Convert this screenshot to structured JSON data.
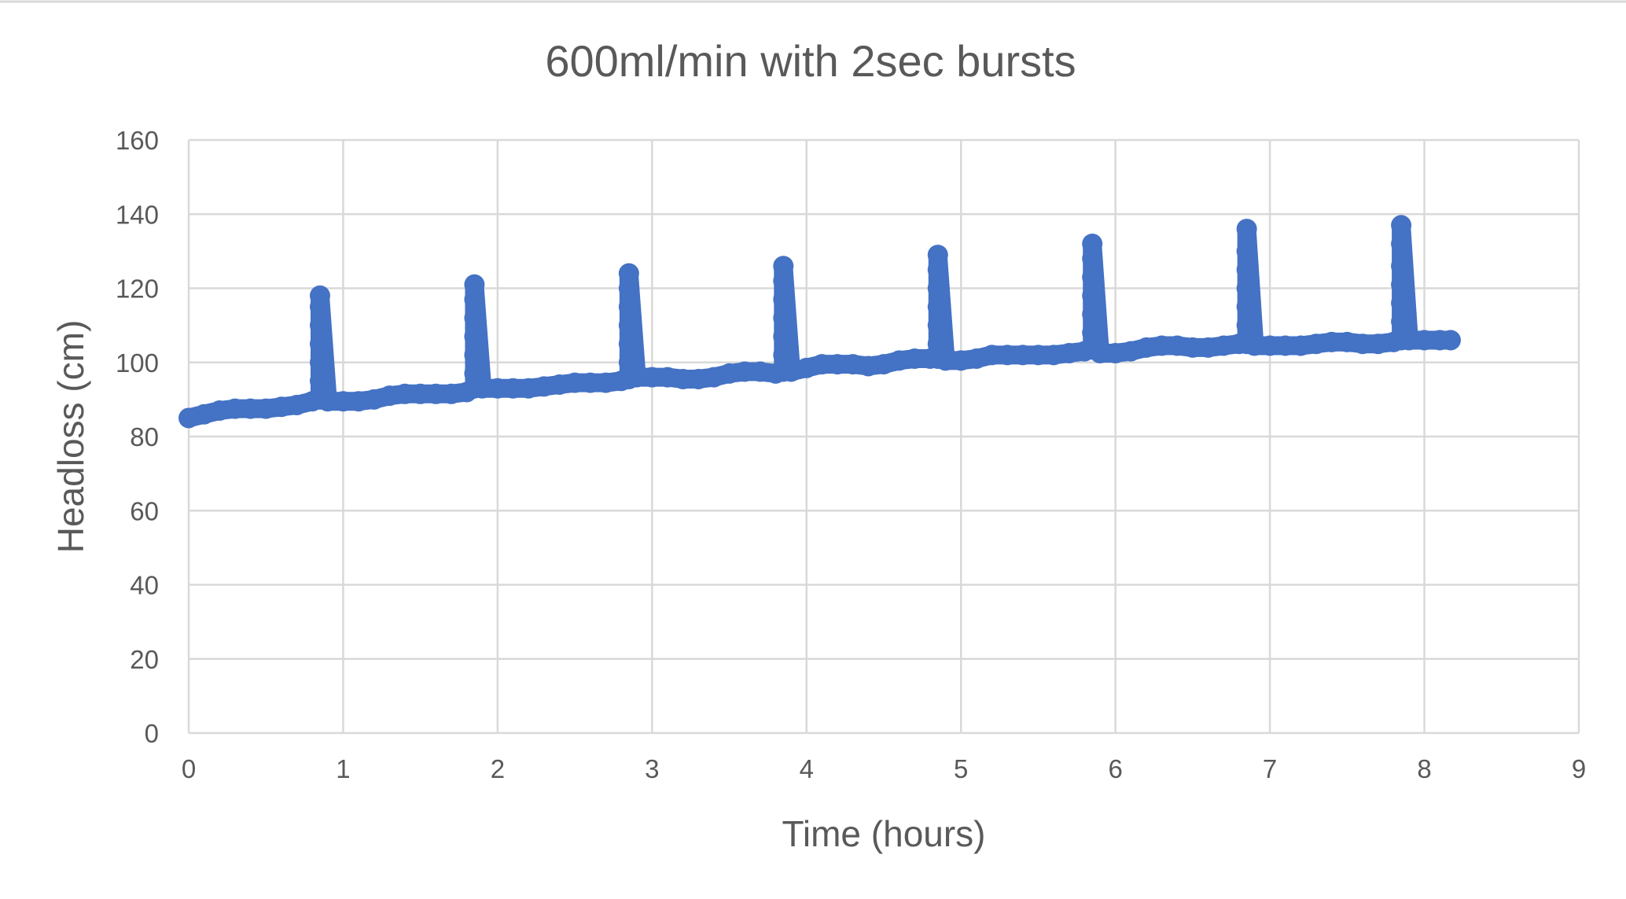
{
  "chart_data": {
    "type": "scatter",
    "title": "600ml/min with 2sec bursts",
    "xlabel": "Time (hours)",
    "ylabel": "Headloss (cm)",
    "xlim": [
      0,
      9
    ],
    "ylim": [
      0,
      160
    ],
    "xticks": [
      0,
      1,
      2,
      3,
      4,
      5,
      6,
      7,
      8,
      9
    ],
    "yticks": [
      0,
      20,
      40,
      60,
      80,
      100,
      120,
      140,
      160
    ],
    "grid": true,
    "legend": "none",
    "series": [
      {
        "color": "#4472c4",
        "points": [
          [
            0.0,
            85
          ],
          [
            0.1,
            86
          ],
          [
            0.2,
            87
          ],
          [
            0.3,
            87.5
          ],
          [
            0.4,
            87.5
          ],
          [
            0.5,
            87.5
          ],
          [
            0.6,
            88
          ],
          [
            0.7,
            88.5
          ],
          [
            0.8,
            89.5
          ],
          [
            0.85,
            90
          ],
          [
            0.85,
            95
          ],
          [
            0.85,
            100
          ],
          [
            0.85,
            105
          ],
          [
            0.85,
            110
          ],
          [
            0.85,
            115
          ],
          [
            0.85,
            118
          ],
          [
            0.9,
            89.5
          ],
          [
            1.0,
            89.5
          ],
          [
            1.1,
            89.5
          ],
          [
            1.2,
            90
          ],
          [
            1.3,
            91
          ],
          [
            1.4,
            91.5
          ],
          [
            1.5,
            91.5
          ],
          [
            1.6,
            91.5
          ],
          [
            1.7,
            91.5
          ],
          [
            1.8,
            92
          ],
          [
            1.85,
            93
          ],
          [
            1.85,
            97
          ],
          [
            1.85,
            102
          ],
          [
            1.85,
            107
          ],
          [
            1.85,
            112
          ],
          [
            1.85,
            117
          ],
          [
            1.85,
            121
          ],
          [
            1.9,
            93
          ],
          [
            2.0,
            93
          ],
          [
            2.1,
            93
          ],
          [
            2.2,
            93
          ],
          [
            2.3,
            93.5
          ],
          [
            2.4,
            94
          ],
          [
            2.5,
            94.5
          ],
          [
            2.6,
            94.5
          ],
          [
            2.7,
            94.5
          ],
          [
            2.8,
            95
          ],
          [
            2.85,
            95.5
          ],
          [
            2.85,
            100
          ],
          [
            2.85,
            105
          ],
          [
            2.85,
            110
          ],
          [
            2.85,
            115
          ],
          [
            2.85,
            120
          ],
          [
            2.85,
            124
          ],
          [
            2.9,
            96
          ],
          [
            3.0,
            96
          ],
          [
            3.1,
            96
          ],
          [
            3.2,
            95.5
          ],
          [
            3.3,
            95.5
          ],
          [
            3.4,
            96
          ],
          [
            3.5,
            97
          ],
          [
            3.6,
            97.5
          ],
          [
            3.7,
            97.5
          ],
          [
            3.8,
            97
          ],
          [
            3.85,
            97.5
          ],
          [
            3.85,
            102
          ],
          [
            3.85,
            107
          ],
          [
            3.85,
            112
          ],
          [
            3.85,
            117
          ],
          [
            3.85,
            122
          ],
          [
            3.85,
            126
          ],
          [
            3.9,
            97.5
          ],
          [
            4.0,
            98.5
          ],
          [
            4.1,
            99.5
          ],
          [
            4.2,
            99.5
          ],
          [
            4.3,
            99.5
          ],
          [
            4.4,
            99
          ],
          [
            4.5,
            99.5
          ],
          [
            4.6,
            100.5
          ],
          [
            4.7,
            101
          ],
          [
            4.8,
            101
          ],
          [
            4.85,
            101
          ],
          [
            4.85,
            105
          ],
          [
            4.85,
            110
          ],
          [
            4.85,
            115
          ],
          [
            4.85,
            120
          ],
          [
            4.85,
            125
          ],
          [
            4.85,
            129
          ],
          [
            4.9,
            100.5
          ],
          [
            5.0,
            100.5
          ],
          [
            5.1,
            101
          ],
          [
            5.2,
            102
          ],
          [
            5.3,
            102
          ],
          [
            5.4,
            102
          ],
          [
            5.5,
            102
          ],
          [
            5.6,
            102
          ],
          [
            5.7,
            102.5
          ],
          [
            5.8,
            103
          ],
          [
            5.85,
            103.5
          ],
          [
            5.85,
            108
          ],
          [
            5.85,
            113
          ],
          [
            5.85,
            118
          ],
          [
            5.85,
            123
          ],
          [
            5.85,
            128
          ],
          [
            5.85,
            132
          ],
          [
            5.9,
            102.5
          ],
          [
            6.0,
            102.5
          ],
          [
            6.1,
            103
          ],
          [
            6.2,
            104
          ],
          [
            6.3,
            104.5
          ],
          [
            6.4,
            104.5
          ],
          [
            6.5,
            104
          ],
          [
            6.6,
            104
          ],
          [
            6.7,
            104.5
          ],
          [
            6.8,
            105
          ],
          [
            6.85,
            105
          ],
          [
            6.85,
            110
          ],
          [
            6.85,
            115
          ],
          [
            6.85,
            120
          ],
          [
            6.85,
            125
          ],
          [
            6.85,
            130
          ],
          [
            6.85,
            136
          ],
          [
            6.9,
            104.5
          ],
          [
            7.0,
            104.5
          ],
          [
            7.1,
            104.5
          ],
          [
            7.2,
            104.5
          ],
          [
            7.3,
            105
          ],
          [
            7.4,
            105.5
          ],
          [
            7.5,
            105.5
          ],
          [
            7.6,
            105
          ],
          [
            7.7,
            105
          ],
          [
            7.8,
            105.5
          ],
          [
            7.85,
            106
          ],
          [
            7.85,
            111
          ],
          [
            7.85,
            116
          ],
          [
            7.85,
            121
          ],
          [
            7.85,
            126
          ],
          [
            7.85,
            132
          ],
          [
            7.85,
            137
          ],
          [
            7.9,
            106
          ],
          [
            8.0,
            106
          ],
          [
            8.1,
            106
          ],
          [
            8.17,
            106
          ]
        ]
      }
    ]
  }
}
